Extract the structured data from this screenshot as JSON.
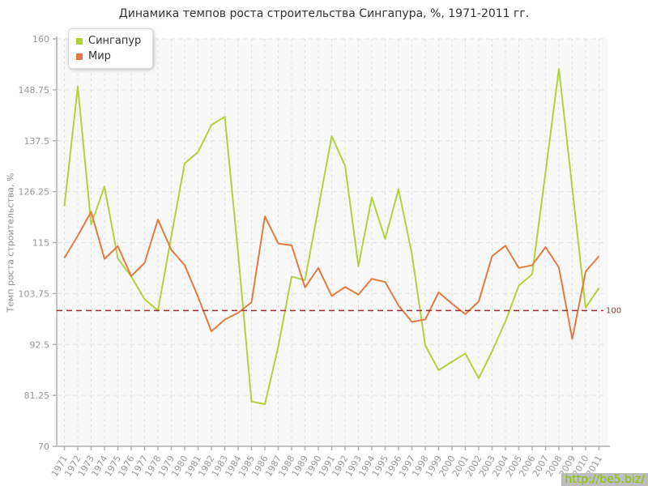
{
  "title": "Динамика темпов роста строительства Сингапура, %, 1971-2011 гг.",
  "y_axis_title": "Темп роста строительства, %",
  "legend": {
    "items": [
      {
        "label": "Сингапур",
        "color": "#b3d23f"
      },
      {
        "label": "Мир",
        "color": "#e57a40"
      }
    ]
  },
  "reference_line": {
    "value": 100,
    "label": "100",
    "color": "#993333"
  },
  "watermark": {
    "text": "http://be5.biz/",
    "text_color": "#8bc400",
    "bg_color": "#bdbdbd"
  },
  "colors": {
    "plot_bg": "#f8f8f8",
    "grid_h": "#e4e4e4",
    "grid_v": "#e0e0e0",
    "axis": "#b0b0b0",
    "tick_label": "#999999",
    "title_text": "#333333"
  },
  "chart_data": {
    "type": "line",
    "title": "Динамика темпов роста строительства Сингапура, %, 1971-2011 гг.",
    "ylabel": "Темп роста строительства, %",
    "xlabel": "",
    "ylim": [
      70,
      160
    ],
    "yticks": [
      70,
      81.25,
      92.5,
      103.75,
      115,
      126.25,
      137.5,
      148.75,
      160
    ],
    "grid": true,
    "legend_position": "top-left",
    "x": [
      1971,
      1972,
      1973,
      1974,
      1975,
      1976,
      1977,
      1978,
      1979,
      1980,
      1981,
      1982,
      1983,
      1984,
      1985,
      1986,
      1987,
      1988,
      1989,
      1990,
      1991,
      1992,
      1993,
      1994,
      1995,
      1996,
      1997,
      1998,
      1999,
      2000,
      2001,
      2002,
      2003,
      2004,
      2005,
      2006,
      2007,
      2008,
      2009,
      2010,
      2011
    ],
    "series": [
      {
        "name": "Сингапур",
        "color": "#b3d23f",
        "values": [
          123.0,
          149.5,
          119.0,
          127.4,
          111.5,
          107.5,
          102.5,
          100.0,
          116.4,
          132.5,
          135.0,
          141.0,
          142.8,
          112.6,
          79.9,
          79.3,
          92.0,
          107.5,
          106.7,
          122.5,
          138.5,
          132.0,
          109.8,
          125.0,
          115.8,
          126.8,
          112.5,
          92.3,
          86.8,
          88.7,
          90.5,
          85.0,
          91.0,
          97.6,
          105.5,
          108.0,
          130.5,
          153.4,
          127.0,
          100.6,
          105.0
        ]
      },
      {
        "name": "Мир",
        "color": "#e57a40",
        "values": [
          111.6,
          116.5,
          121.8,
          111.4,
          114.2,
          107.6,
          110.5,
          120.1,
          113.4,
          110.0,
          103.0,
          95.4,
          98.0,
          99.5,
          101.8,
          120.8,
          114.8,
          114.4,
          105.1,
          109.4,
          103.2,
          105.2,
          103.5,
          107.0,
          106.3,
          101.1,
          97.5,
          98.0,
          104.0,
          101.5,
          99.2,
          102.0,
          112.0,
          114.3,
          109.4,
          110.0,
          114.0,
          109.5,
          93.7,
          108.6,
          112.0
        ]
      }
    ],
    "reference_line_y": 100
  }
}
